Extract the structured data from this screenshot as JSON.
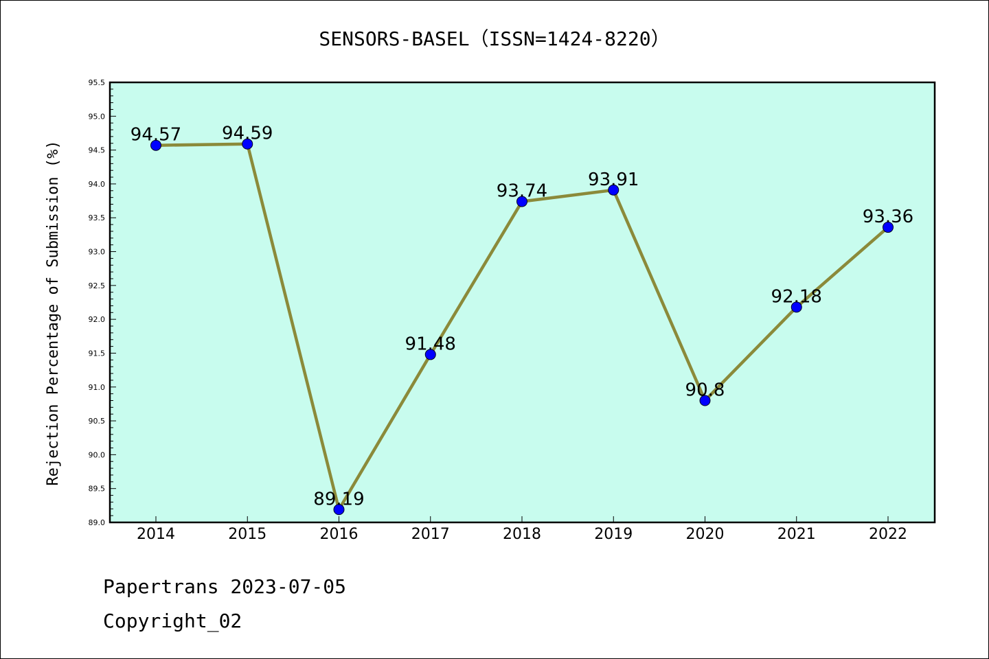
{
  "chart_data": {
    "type": "line",
    "title": "SENSORS-BASEL（ISSN=1424-8220）",
    "xlabel": "",
    "ylabel": "Rejection Percentage of Submission (%)",
    "categories": [
      "2014",
      "2015",
      "2016",
      "2017",
      "2018",
      "2019",
      "2020",
      "2021",
      "2022"
    ],
    "series": [
      {
        "values": [
          94.57,
          94.59,
          89.19,
          91.48,
          93.74,
          93.91,
          90.8,
          92.18,
          93.36
        ],
        "labels": [
          "94.57",
          "94.59",
          "89.19",
          "91.48",
          "93.74",
          "93.91",
          "90.8",
          "92.18",
          "93.36"
        ],
        "line_color": "#8b8a3a",
        "marker_color": "#0000ff"
      }
    ],
    "ylim": [
      89.0,
      95.5
    ],
    "yticks": [
      "89.0",
      "89.5",
      "90.0",
      "90.5",
      "91.0",
      "91.5",
      "92.0",
      "92.5",
      "93.0",
      "93.5",
      "94.0",
      "94.5",
      "95.0",
      "95.5"
    ],
    "grid": false,
    "plot_background": "#c8fcee"
  },
  "footer": {
    "line1": "Papertrans 2023-07-05",
    "line2": "Copyright_02"
  }
}
